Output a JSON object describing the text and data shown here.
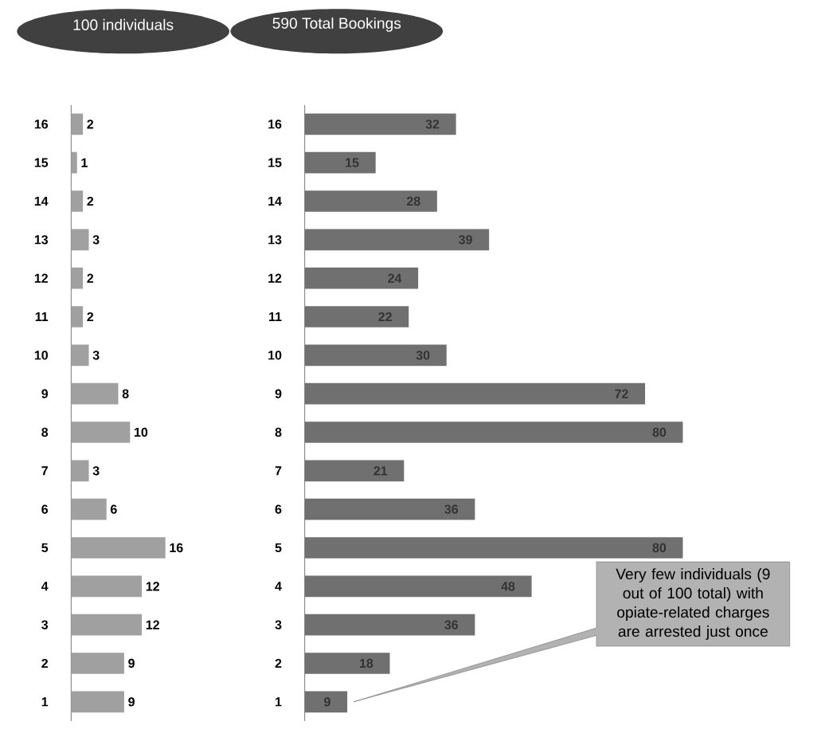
{
  "chart_data": [
    {
      "type": "bar",
      "orientation": "horizontal",
      "title": "100 individuals",
      "categories": [
        "16",
        "15",
        "14",
        "13",
        "12",
        "11",
        "10",
        "9",
        "8",
        "7",
        "6",
        "5",
        "4",
        "3",
        "2",
        "1"
      ],
      "values": [
        2,
        1,
        2,
        3,
        2,
        2,
        3,
        8,
        10,
        3,
        6,
        16,
        12,
        12,
        9,
        9
      ],
      "color": "#a0a0a0",
      "data_labels": true,
      "tick_labels": "y"
    },
    {
      "type": "bar",
      "orientation": "horizontal",
      "title": "590 Total Bookings",
      "categories": [
        "16",
        "15",
        "14",
        "13",
        "12",
        "11",
        "10",
        "9",
        "8",
        "7",
        "6",
        "5",
        "4",
        "3",
        "2",
        "1"
      ],
      "values": [
        32,
        15,
        28,
        39,
        24,
        22,
        30,
        72,
        80,
        21,
        36,
        80,
        48,
        36,
        18,
        9
      ],
      "color": "#707070",
      "data_labels": true,
      "tick_labels": "y",
      "annotations": [
        "Very few individuals (9 out of 100 total) with opiate-related charges are arrested just once"
      ]
    }
  ]
}
